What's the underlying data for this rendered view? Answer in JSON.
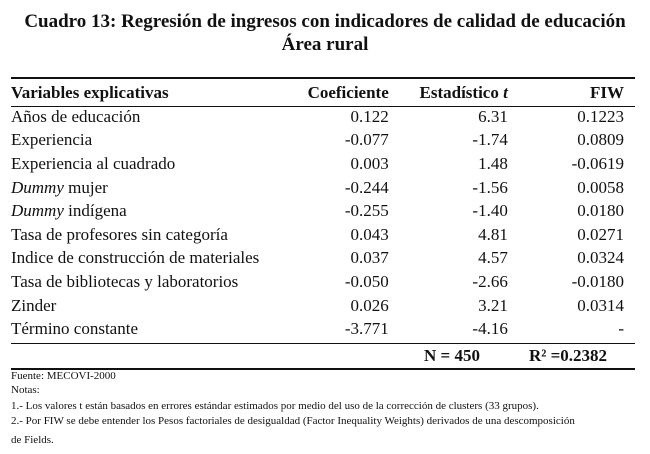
{
  "title": {
    "line1": "Cuadro 13: Regresión de ingresos con indicadores de calidad de educación",
    "line2": "Área rural"
  },
  "table": {
    "headers": [
      "Variables explicativas",
      "Coeficiente",
      "Estadístico t",
      "FIW"
    ],
    "rows": [
      {
        "variable": "Años de educación",
        "coeficiente": "0.122",
        "estadistico": "6.31",
        "fiw": "0.1223"
      },
      {
        "variable": "Experiencia",
        "coeficiente": "-0.077",
        "estadistico": "-1.74",
        "fiw": "0.0809"
      },
      {
        "variable": "Experiencia al cuadrado",
        "coeficiente": "0.003",
        "estadistico": "1.48",
        "fiw": "-0.0619"
      },
      {
        "variable": "Dummy mujer",
        "coeficiente": "-0.244",
        "estadistico": "-1.56",
        "fiw": "0.0058"
      },
      {
        "variable": "Dummy indígena",
        "coeficiente": "-0.255",
        "estadistico": "-1.40",
        "fiw": "0.0180"
      },
      {
        "variable": "Tasa de profesores sin categoría",
        "coeficiente": "0.043",
        "estadistico": "4.81",
        "fiw": "0.0271"
      },
      {
        "variable": "Indice de construcción de materiales",
        "coeficiente": "0.037",
        "estadistico": "4.57",
        "fiw": "0.0324"
      },
      {
        "variable": "Tasa de bibliotecas y laboratorios",
        "coeficiente": "-0.050",
        "estadistico": "-2.66",
        "fiw": "-0.0180"
      },
      {
        "variable": "Zinder",
        "coeficiente": "0.026",
        "estadistico": "3.21",
        "fiw": "0.0314"
      },
      {
        "variable": "Término constante",
        "coeficiente": "-3.771",
        "estadistico": "-4.16",
        "fiw": "-"
      }
    ],
    "stats": {
      "n": "N = 450",
      "r2": "R² =0.2382"
    }
  },
  "notes": {
    "fuente": "Fuente: MECOVI-2000",
    "notas": "Notas:",
    "note1": "1.- Los valores t están basados en errores estándar estimados por medio del uso de la corrección de clusters (33 grupos).",
    "note2a": "2.- Por FIW se debe entender los Pesos factoriales de desigualdad (Factor Inequality Weights) derivados de una descomposición",
    "note2b": "de Fields."
  }
}
